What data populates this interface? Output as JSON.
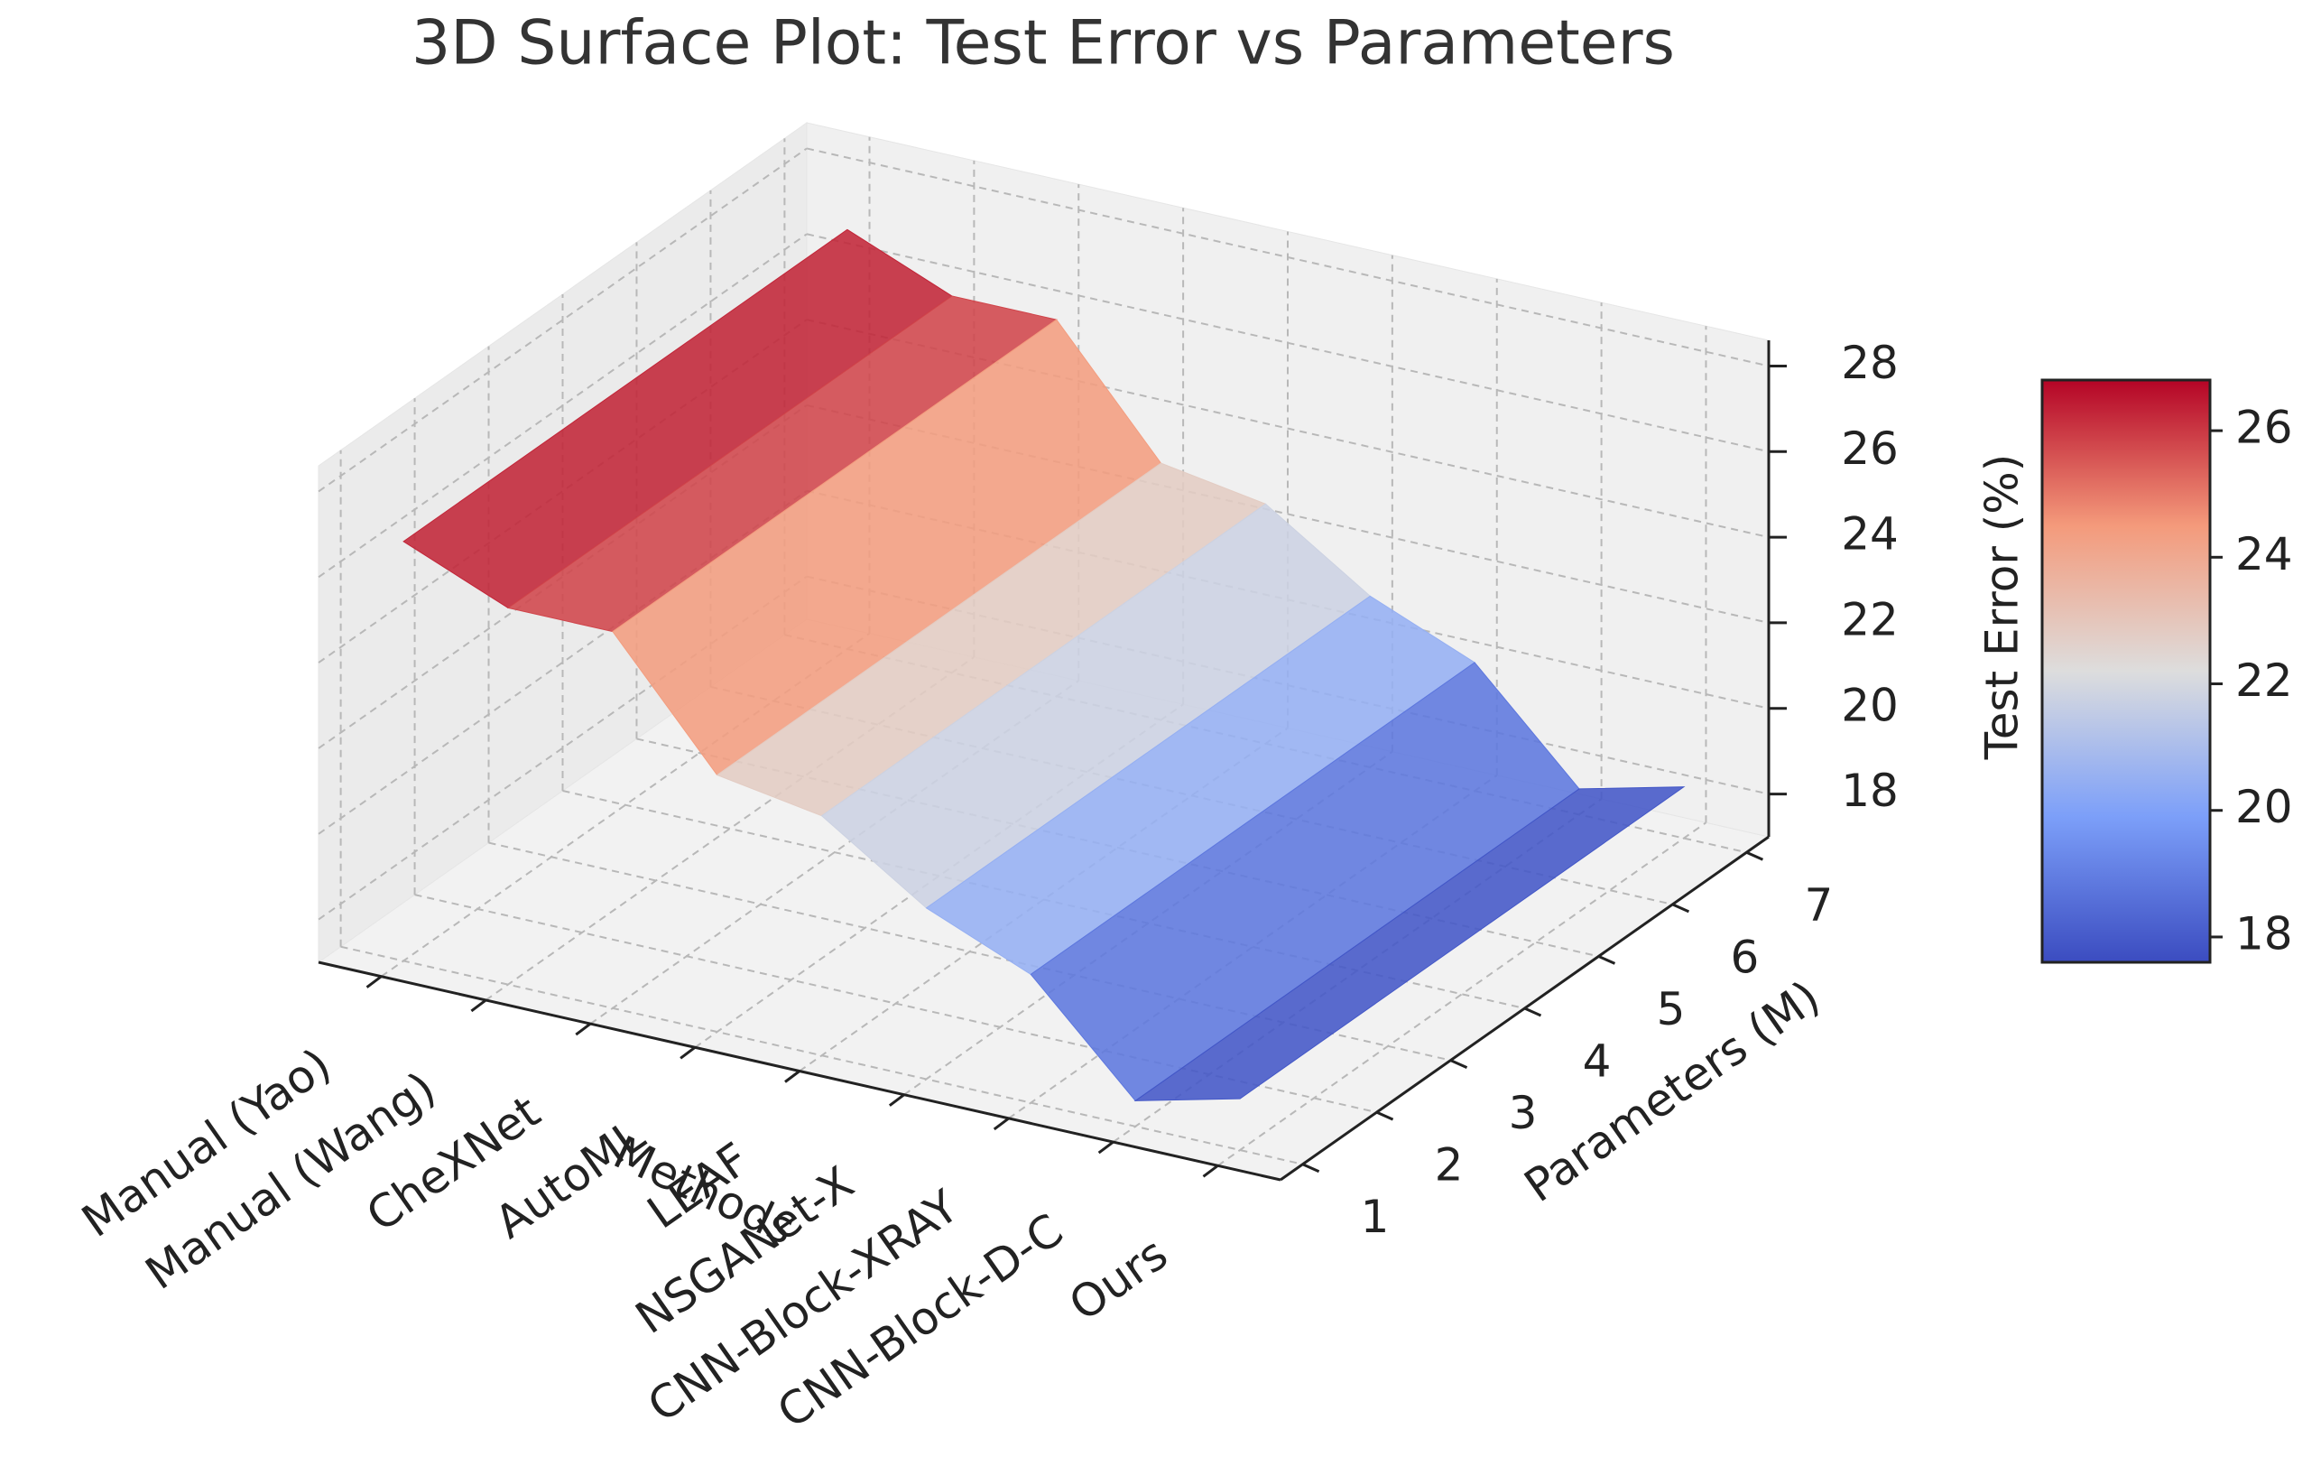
{
  "chart_data": {
    "type": "surface3d",
    "title": "3D Surface Plot: Test Error vs Parameters",
    "x_label": "Methods",
    "y_label": "Parameters (M)",
    "colorbar_label": "Test Error (%)",
    "categories": [
      "Manual (Yao)",
      "Manual (Wang)",
      "CheXNet",
      "AutoML",
      "LEAF",
      "NSGANet-X",
      "CNN-Block-XRAY",
      "CNN-Block-D-C",
      "Ours"
    ],
    "values": [
      26.8,
      25.8,
      25.8,
      23.0,
      22.6,
      21.0,
      20.0,
      17.6,
      18.2
    ],
    "ylim": [
      0.7,
      7.3
    ],
    "yticks": [
      1,
      2,
      3,
      4,
      5,
      6,
      7
    ],
    "zlim": [
      17.0,
      28.6
    ],
    "zticks": [
      18,
      20,
      22,
      24,
      26,
      28
    ],
    "colorbar_ticks": [
      18,
      20,
      22,
      24,
      26
    ],
    "colormap": "coolwarm",
    "grid": true
  }
}
